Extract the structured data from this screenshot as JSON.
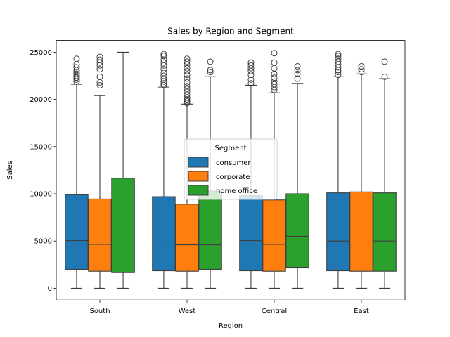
{
  "chart_data": {
    "type": "box",
    "title": "Sales by Region and Segment",
    "xlabel": "Region",
    "ylabel": "Sales",
    "ylim": [
      -1250,
      26250
    ],
    "yticks": [
      0,
      5000,
      10000,
      15000,
      20000,
      25000
    ],
    "categories": [
      "South",
      "West",
      "Central",
      "East"
    ],
    "legend": {
      "title": "Segment",
      "location": "center"
    },
    "series": [
      {
        "name": "consumer",
        "color": "#1f77b4",
        "boxes": [
          {
            "whisker_low": 0,
            "q1": 2000,
            "median": 5050,
            "q3": 9900,
            "whisker_high": 21600,
            "outliers": [
              21900,
              22100,
              22300,
              22500,
              22700,
              22900,
              23100,
              23400,
              23700,
              24300
            ]
          },
          {
            "whisker_low": 0,
            "q1": 1850,
            "median": 4900,
            "q3": 9700,
            "whisker_high": 21300,
            "outliers": [
              21500,
              21700,
              21900,
              22200,
              22500,
              22800,
              23200,
              23600,
              23900,
              24200,
              24600,
              24800
            ]
          },
          {
            "whisker_low": 0,
            "q1": 1850,
            "median": 5050,
            "q3": 9800,
            "whisker_high": 21500,
            "outliers": [
              21700,
              22100,
              22600,
              23000,
              23300,
              23600,
              23900
            ]
          },
          {
            "whisker_low": 0,
            "q1": 1850,
            "median": 5000,
            "q3": 10100,
            "whisker_high": 22400,
            "outliers": [
              22600,
              22900,
              23100,
              23400,
              23700,
              24000,
              24300,
              24600,
              24800
            ]
          }
        ]
      },
      {
        "name": "corporate",
        "color": "#ff7f0e",
        "boxes": [
          {
            "whisker_low": 0,
            "q1": 1800,
            "median": 4650,
            "q3": 9450,
            "whisker_high": 20400,
            "outliers": [
              21500,
              21800,
              22400,
              23200,
              23600,
              23900,
              24200,
              24500
            ]
          },
          {
            "whisker_low": 0,
            "q1": 1800,
            "median": 4600,
            "q3": 8900,
            "whisker_high": 19500,
            "outliers": [
              19600,
              19800,
              20000,
              20200,
              20500,
              20800,
              21100,
              21400,
              21800,
              22200,
              22600,
              23000,
              23300,
              23700,
              24000,
              24300
            ]
          },
          {
            "whisker_low": 0,
            "q1": 1800,
            "median": 4650,
            "q3": 9350,
            "whisker_high": 20700,
            "outliers": [
              21000,
              21300,
              21600,
              21900,
              22300,
              22700,
              23300,
              23900,
              24900
            ]
          },
          {
            "whisker_low": 0,
            "q1": 1800,
            "median": 5200,
            "q3": 10200,
            "whisker_high": 22700,
            "outliers": [
              22900,
              23200,
              23500
            ]
          }
        ]
      },
      {
        "name": "home office",
        "color": "#2ca02c",
        "boxes": [
          {
            "whisker_low": 0,
            "q1": 1650,
            "median": 5200,
            "q3": 11650,
            "whisker_high": 25000,
            "outliers": []
          },
          {
            "whisker_low": 0,
            "q1": 2000,
            "median": 4600,
            "q3": 10300,
            "whisker_high": 22400,
            "outliers": [
              22900,
              23100,
              24000
            ]
          },
          {
            "whisker_low": 0,
            "q1": 2150,
            "median": 5500,
            "q3": 10000,
            "whisker_high": 21700,
            "outliers": [
              22200,
              22700,
              23100,
              23500
            ]
          },
          {
            "whisker_low": 0,
            "q1": 1800,
            "median": 5000,
            "q3": 10100,
            "whisker_high": 22200,
            "outliers": [
              22400,
              24000
            ]
          }
        ]
      }
    ]
  }
}
